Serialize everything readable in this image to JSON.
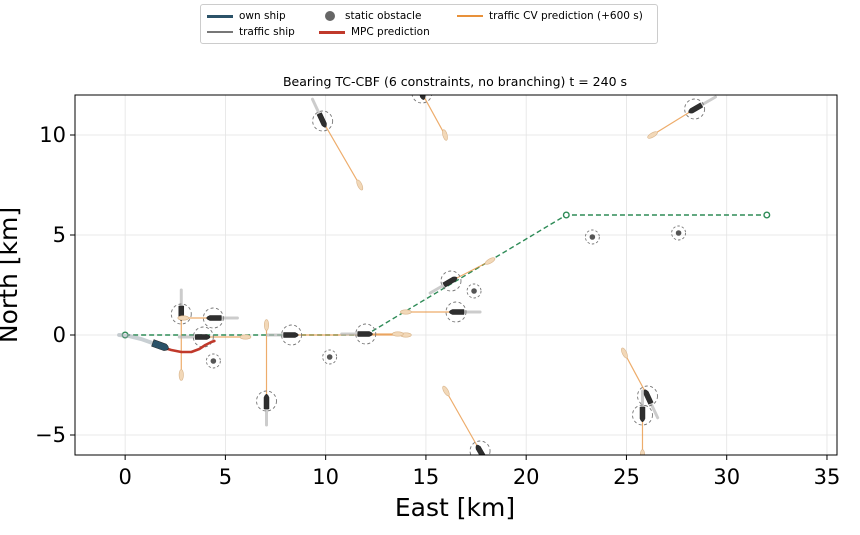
{
  "chart_data": {
    "type": "scatter",
    "title": "Bearing TC-CBF (6 constraints, no branching)   t =   240 s",
    "xlabel": "East [km]",
    "ylabel": "North [km]",
    "xlim": [
      -2.5,
      35.5
    ],
    "ylim": [
      -6,
      12
    ],
    "xticks": [
      0,
      5,
      10,
      15,
      20,
      25,
      30,
      35
    ],
    "yticks": [
      -5,
      0,
      5,
      10
    ],
    "grid": true,
    "legend": {
      "placement": "top-center",
      "entries": [
        {
          "label": "own ship",
          "marker": "line",
          "color": "#2b5268"
        },
        {
          "label": "traffic ship",
          "marker": "line",
          "color": "#777777"
        },
        {
          "label": "static obstacle",
          "marker": "dot",
          "color": "#666666"
        },
        {
          "label": "MPC prediction",
          "marker": "line",
          "color": "#c0392b"
        },
        {
          "label": "traffic CV prediction (+600 s)",
          "marker": "line",
          "color": "#e8913a"
        }
      ]
    },
    "colors": {
      "own_ship": "#2b5268",
      "traffic": "#777777",
      "static": "#555555",
      "mpc": "#c0392b",
      "cv_prediction": "#e8913a",
      "route": "#2e8b57",
      "ring": "#777777"
    },
    "route": {
      "name": "waypoint route",
      "x": [
        0,
        12,
        22,
        32
      ],
      "y": [
        0,
        0,
        6,
        6
      ]
    },
    "own_ship": {
      "trail": {
        "x": [
          -0.3,
          0.2,
          0.8,
          1.5
        ],
        "y": [
          0,
          -0.05,
          -0.2,
          -0.45
        ]
      },
      "position": [
        1.8,
        -0.55
      ],
      "heading_deg": 110
    },
    "mpc_prediction": {
      "x": [
        1.8,
        2.3,
        2.8,
        3.3,
        3.7,
        4.0,
        4.3,
        4.45
      ],
      "y": [
        -0.6,
        -0.75,
        -0.85,
        -0.85,
        -0.7,
        -0.5,
        -0.35,
        -0.3
      ]
    },
    "traffic_ships": [
      {
        "x": 2.8,
        "y": 1.05,
        "heading_deg": 180,
        "pred_end": [
          2.8,
          -2.0
        ]
      },
      {
        "x": 4.4,
        "y": 0.85,
        "heading_deg": 270,
        "pred_end": [
          2.9,
          0.85
        ]
      },
      {
        "x": 3.9,
        "y": -0.1,
        "heading_deg": 90,
        "pred_end": [
          6.0,
          -0.1
        ]
      },
      {
        "x": 7.05,
        "y": -3.3,
        "heading_deg": 0,
        "pred_end": [
          7.05,
          0.5
        ]
      },
      {
        "x": 8.3,
        "y": 0.0,
        "heading_deg": 90,
        "pred_end": [
          14.0,
          0.0
        ]
      },
      {
        "x": 9.85,
        "y": 10.7,
        "heading_deg": 155,
        "pred_end": [
          11.7,
          7.5
        ]
      },
      {
        "x": 12.0,
        "y": 0.05,
        "heading_deg": 90,
        "pred_end": [
          13.6,
          0.05
        ]
      },
      {
        "x": 14.8,
        "y": 12.1,
        "heading_deg": 165,
        "pred_end": [
          15.95,
          10.0
        ]
      },
      {
        "x": 16.25,
        "y": 2.7,
        "heading_deg": 60,
        "pred_end": [
          18.2,
          3.7
        ]
      },
      {
        "x": 16.5,
        "y": 1.15,
        "heading_deg": 270,
        "pred_end": [
          14.0,
          1.15
        ]
      },
      {
        "x": 17.7,
        "y": -5.8,
        "heading_deg": 330,
        "pred_end": [
          16.0,
          -2.8
        ]
      },
      {
        "x": 26.05,
        "y": -3.05,
        "heading_deg": 335,
        "pred_end": [
          24.9,
          -0.9
        ]
      },
      {
        "x": 28.4,
        "y": 11.3,
        "heading_deg": 240,
        "pred_end": [
          26.3,
          10.0
        ]
      },
      {
        "x": 25.8,
        "y": -4.0,
        "heading_deg": 180,
        "pred_end": [
          25.8,
          -6.0
        ]
      }
    ],
    "static_obstacles": [
      {
        "x": 4.4,
        "y": -1.3
      },
      {
        "x": 10.2,
        "y": -1.1
      },
      {
        "x": 17.4,
        "y": 2.2
      },
      {
        "x": 23.3,
        "y": 4.9
      },
      {
        "x": 27.6,
        "y": 5.1
      }
    ]
  }
}
